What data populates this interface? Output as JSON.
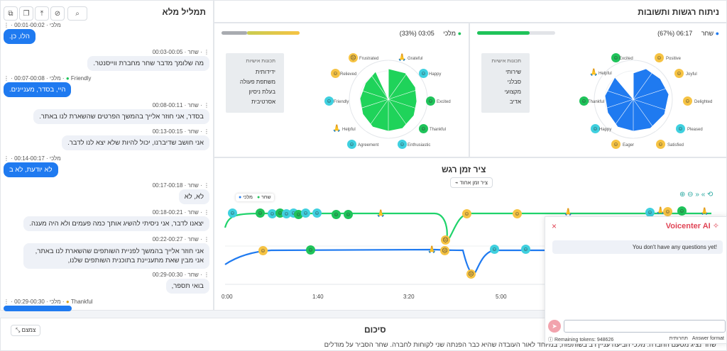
{
  "header": {
    "analysis_title": "ניתוח רגשות ותשובות",
    "transcript_title": "תמליל מלא"
  },
  "speakers": {
    "agent": {
      "name": "שחר",
      "time": "06:17",
      "percent": "(67%)",
      "color": "#1f7af0"
    },
    "client": {
      "name": "מלכי",
      "time": "03:05",
      "percent": "(33%)",
      "color": "#1fc35a"
    }
  },
  "agent_traits": {
    "title": "תכונות אישיות",
    "items": [
      "שירותי",
      "סבלני",
      "מקצועי",
      "אדיב"
    ]
  },
  "client_traits": {
    "title": "תכונות אישיות",
    "items": [
      "ידידותית",
      "משתפת פעולה",
      "בעלת ניסיון",
      "אסרטיבית"
    ]
  },
  "agent_radar_labels": [
    "Excited",
    "Positive",
    "Joyful",
    "Delighted",
    "Pleased",
    "Satisfied",
    "Eager",
    "Happy",
    "Thankful",
    "Helpful"
  ],
  "client_radar_labels": [
    "Frustrated",
    "Grateful",
    "Happy",
    "Excited",
    "Thankful",
    "Enthusiastic",
    "Agreement",
    "Helpful",
    "Friendly",
    "Relieved"
  ],
  "timeline": {
    "title": "ציר זמן רגש",
    "toggle_label": "ציר זמן אחוד",
    "legend_client": "מלכי",
    "legend_agent": "שחר",
    "x_ticks": [
      "0:00",
      "1:40",
      "3:20",
      "5:00"
    ]
  },
  "transcript": [
    {
      "speaker": "מלכי",
      "time": "00:01-00:02",
      "text": "הלו, כן.",
      "role": "client",
      "tag": ""
    },
    {
      "speaker": "שחר",
      "time": "00:03-00:05",
      "text": "מה שלומך מדבר שחר מחברת ווייסנטר.",
      "role": "agent",
      "tag": ""
    },
    {
      "speaker": "מלכי",
      "time": "00:07-00:08",
      "text": "היי, בסדר, מעניינים.",
      "role": "client",
      "tag": "Friendly"
    },
    {
      "speaker": "שחר",
      "time": "00:08-00:11",
      "text": "בסדר, אני חוזר אלייך בהמשך הפרטים שהשארת לנו באתר.",
      "role": "agent",
      "tag": ""
    },
    {
      "speaker": "שחר",
      "time": "00:13-00:15",
      "text": "אני חושב שדיברנו, יכול להיות שלא יצא לנו לדבר.",
      "role": "agent",
      "tag": ""
    },
    {
      "speaker": "מלכי",
      "time": "00:14-00:17",
      "text": "לא יודעת, לא ב",
      "role": "client",
      "tag": ""
    },
    {
      "speaker": "שחר",
      "time": "00:17-00:18",
      "text": "לא, לא",
      "role": "agent",
      "tag": ""
    },
    {
      "speaker": "שחר",
      "time": "00:18-00:21",
      "text": "יצאנו לדבר, אני ניסיתי להשיג אותך כמה פעמים ולא היה מענה.",
      "role": "agent",
      "tag": ""
    },
    {
      "speaker": "שחר",
      "time": "00:22-00:27",
      "text": "אני חוזר אלייך בהמשך לפניית השותפים שהשארת לנו באתר, אני מבין שאת מתעניינת בתוכנית השותפים שלנו,",
      "role": "agent",
      "tag": ""
    },
    {
      "speaker": "שחר",
      "time": "00:29-00:30",
      "text": "בואי תספר,",
      "role": "agent",
      "tag": ""
    },
    {
      "speaker": "מלכי",
      "time": "00:29-00:30",
      "text": "",
      "role": "client",
      "tag": "Thankful"
    }
  ],
  "ai_panel": {
    "title": "Voicenter AI",
    "message": "You don't have any questions yet!",
    "remaining_tokens": "Remaining tokens: 948626",
    "answer_format_label": "Answer format",
    "answer_format_value": "תחרותית"
  },
  "summary": {
    "title": "סיכום",
    "collapse_label": "צמצם",
    "text": "שחר נציג מטעם החברה. מלכי הביעה עניין רב בשותפות, במיוחד לאור העובדה שהיא כבר הפנתה שני לקוחות לחברה. שחר הסביר על מודלים"
  }
}
